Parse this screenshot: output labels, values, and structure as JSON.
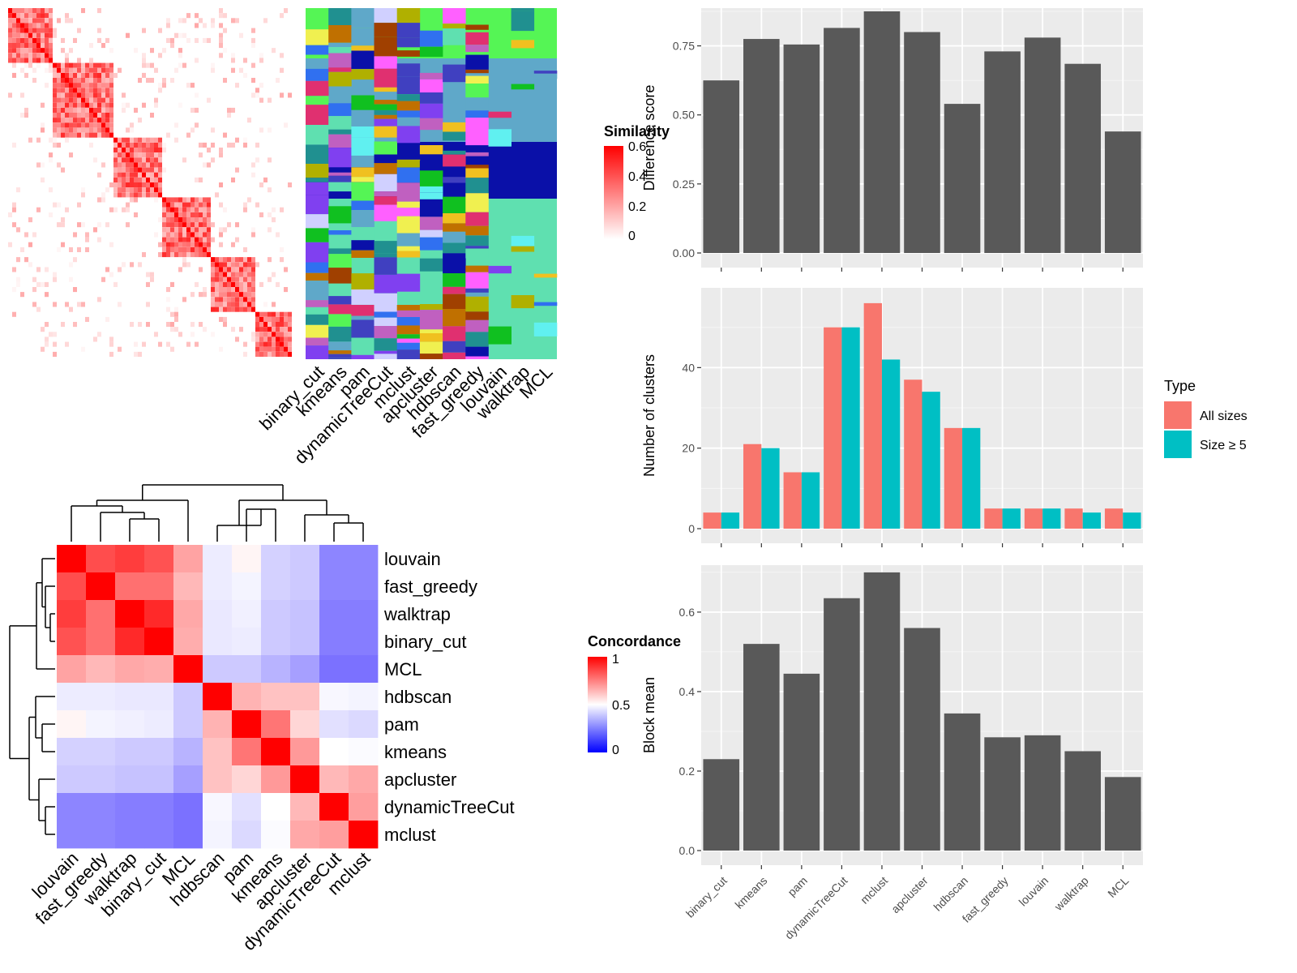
{
  "colors": {
    "panel_bg": "#ebebeb",
    "grid_major": "#ffffff",
    "bar_fill": "#595959",
    "all_sizes": "#F8766D",
    "size_ge5": "#00BFC4",
    "heat_high": "#ff0000",
    "heat_mid": "#ffffff",
    "heat_low": "#0000ff"
  },
  "similarity_heatmap": {
    "legend_title": "Similarity",
    "legend_ticks": [
      "0.6",
      "0.4",
      "0.2",
      "0"
    ]
  },
  "cluster_assignments": {
    "methods": [
      "binary_cut",
      "kmeans",
      "pam",
      "dynamicTreeCut",
      "mclust",
      "apcluster",
      "hdbscan",
      "fast_greedy",
      "louvain",
      "walktrap",
      "MCL"
    ]
  },
  "concordance_heatmap": {
    "legend_title": "Concordance",
    "legend_ticks": [
      "1",
      "0.5",
      "0"
    ],
    "methods": [
      "louvain",
      "fast_greedy",
      "walktrap",
      "binary_cut",
      "MCL",
      "hdbscan",
      "pam",
      "kmeans",
      "apcluster",
      "dynamicTreeCut",
      "mclust"
    ],
    "matrix": [
      [
        1.0,
        0.85,
        0.88,
        0.84,
        0.68,
        0.45,
        0.52,
        0.38,
        0.36,
        0.18,
        0.18
      ],
      [
        0.85,
        1.0,
        0.78,
        0.78,
        0.64,
        0.45,
        0.47,
        0.38,
        0.36,
        0.18,
        0.18
      ],
      [
        0.88,
        0.78,
        1.0,
        0.92,
        0.67,
        0.44,
        0.46,
        0.36,
        0.34,
        0.16,
        0.16
      ],
      [
        0.84,
        0.78,
        0.92,
        1.0,
        0.66,
        0.44,
        0.45,
        0.36,
        0.34,
        0.16,
        0.16
      ],
      [
        0.68,
        0.64,
        0.67,
        0.66,
        1.0,
        0.36,
        0.36,
        0.3,
        0.25,
        0.13,
        0.13
      ],
      [
        0.45,
        0.45,
        0.44,
        0.44,
        0.36,
        1.0,
        0.65,
        0.62,
        0.62,
        0.48,
        0.47
      ],
      [
        0.52,
        0.47,
        0.46,
        0.45,
        0.36,
        0.65,
        1.0,
        0.77,
        0.58,
        0.42,
        0.4
      ],
      [
        0.38,
        0.38,
        0.36,
        0.36,
        0.3,
        0.62,
        0.77,
        1.0,
        0.7,
        0.5,
        0.49
      ],
      [
        0.36,
        0.36,
        0.34,
        0.34,
        0.25,
        0.62,
        0.58,
        0.7,
        1.0,
        0.64,
        0.67
      ],
      [
        0.18,
        0.18,
        0.16,
        0.16,
        0.13,
        0.48,
        0.42,
        0.5,
        0.64,
        1.0,
        0.69
      ],
      [
        0.18,
        0.18,
        0.16,
        0.16,
        0.13,
        0.47,
        0.4,
        0.49,
        0.67,
        0.69,
        1.0
      ]
    ]
  },
  "chart_data": [
    {
      "type": "bar",
      "categories": [
        "binary_cut",
        "kmeans",
        "pam",
        "dynamicTreeCut",
        "mclust",
        "apcluster",
        "hdbscan",
        "fast_greedy",
        "louvain",
        "walktrap",
        "MCL"
      ],
      "values": [
        0.625,
        0.775,
        0.755,
        0.815,
        0.875,
        0.8,
        0.54,
        0.73,
        0.78,
        0.685,
        0.44
      ],
      "xlabel": "",
      "ylabel": "Difference score",
      "ylim": [
        0,
        0.875
      ],
      "yticks": [
        "0.00",
        "0.25",
        "0.50",
        "0.75"
      ]
    },
    {
      "type": "bar",
      "categories": [
        "binary_cut",
        "kmeans",
        "pam",
        "dynamicTreeCut",
        "mclust",
        "apcluster",
        "hdbscan",
        "fast_greedy",
        "louvain",
        "walktrap",
        "MCL"
      ],
      "series": [
        {
          "name": "All sizes",
          "values": [
            4,
            21,
            14,
            50,
            56,
            37,
            25,
            5,
            5,
            5,
            5
          ]
        },
        {
          "name": "Size ≥ 5",
          "values": [
            4,
            20,
            14,
            50,
            42,
            34,
            25,
            5,
            5,
            4,
            4
          ]
        }
      ],
      "xlabel": "",
      "ylabel": "Number of clusters",
      "ylim": [
        0,
        59
      ],
      "yticks": [
        "0",
        "20",
        "40"
      ],
      "legend_title": "Type",
      "legend_placement": "right"
    },
    {
      "type": "bar",
      "categories": [
        "binary_cut",
        "kmeans",
        "pam",
        "dynamicTreeCut",
        "mclust",
        "apcluster",
        "hdbscan",
        "fast_greedy",
        "louvain",
        "walktrap",
        "MCL"
      ],
      "values": [
        0.23,
        0.52,
        0.445,
        0.635,
        0.7,
        0.56,
        0.345,
        0.285,
        0.29,
        0.25,
        0.185
      ],
      "xlabel": "",
      "ylabel": "Block mean",
      "ylim": [
        0,
        0.71
      ],
      "yticks": [
        "0.0",
        "0.2",
        "0.4",
        "0.6"
      ]
    }
  ]
}
